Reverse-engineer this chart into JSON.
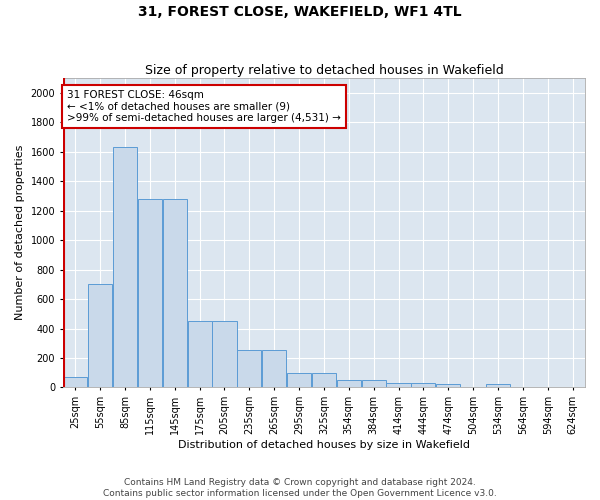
{
  "title": "31, FOREST CLOSE, WAKEFIELD, WF1 4TL",
  "subtitle": "Size of property relative to detached houses in Wakefield",
  "xlabel": "Distribution of detached houses by size in Wakefield",
  "ylabel": "Number of detached properties",
  "footer_line1": "Contains HM Land Registry data © Crown copyright and database right 2024.",
  "footer_line2": "Contains public sector information licensed under the Open Government Licence v3.0.",
  "categories": [
    "25sqm",
    "55sqm",
    "85sqm",
    "115sqm",
    "145sqm",
    "175sqm",
    "205sqm",
    "235sqm",
    "265sqm",
    "295sqm",
    "325sqm",
    "354sqm",
    "384sqm",
    "414sqm",
    "444sqm",
    "474sqm",
    "504sqm",
    "534sqm",
    "564sqm",
    "594sqm",
    "624sqm"
  ],
  "values": [
    70,
    700,
    1630,
    1280,
    1280,
    450,
    450,
    255,
    255,
    95,
    95,
    50,
    50,
    30,
    30,
    20,
    0,
    20,
    0,
    0,
    0
  ],
  "bar_color": "#c9d9ea",
  "bar_edge_color": "#5b9bd5",
  "annotation_box_color": "#ffffff",
  "annotation_box_edge_color": "#cc0000",
  "annotation_line_color": "#cc0000",
  "annotation_text_line1": "31 FOREST CLOSE: 46sqm",
  "annotation_text_line2": "← <1% of detached houses are smaller (9)",
  "annotation_text_line3": ">99% of semi-detached houses are larger (4,531) →",
  "ylim": [
    0,
    2100
  ],
  "yticks": [
    0,
    200,
    400,
    600,
    800,
    1000,
    1200,
    1400,
    1600,
    1800,
    2000
  ],
  "bg_color": "#dce6f0",
  "grid_color": "#ffffff",
  "fig_bg_color": "#ffffff",
  "title_fontsize": 10,
  "subtitle_fontsize": 9,
  "axis_label_fontsize": 8,
  "tick_fontsize": 7,
  "annotation_fontsize": 7.5,
  "footer_fontsize": 6.5
}
